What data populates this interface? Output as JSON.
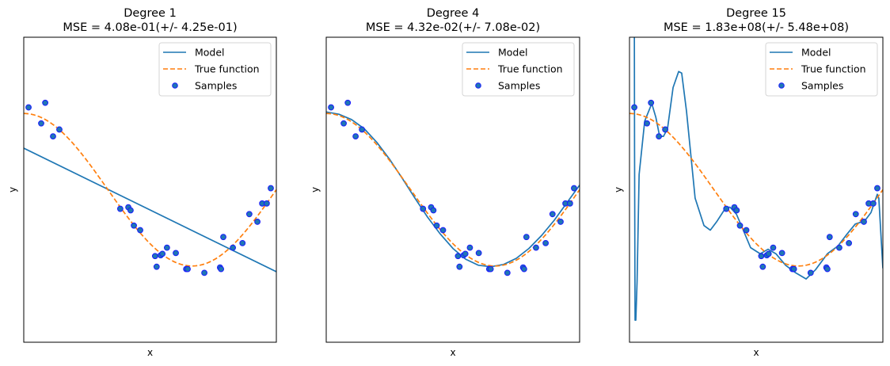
{
  "chart_data": [
    {
      "type": "line",
      "title_line1": "Degree 1",
      "title_line2": "MSE = 4.08e-01(+/- 4.25e-01)",
      "xlabel": "x",
      "ylabel": "y",
      "xlim": [
        0,
        1
      ],
      "ylim": [
        -2,
        2
      ],
      "xticks": [],
      "yticks": [],
      "grid": false,
      "legend_placement": "top-right",
      "legend": [
        "Model",
        "True function",
        "Samples"
      ],
      "series": [
        {
          "name": "Model",
          "kind": "line",
          "color": "#1f77b4",
          "x": [
            0,
            1
          ],
          "y": [
            0.545,
            -1.075
          ]
        },
        {
          "name": "True function",
          "kind": "dashed",
          "color": "#ff7f0e",
          "function": "cos(1.5*pi*x)"
        }
      ]
    },
    {
      "type": "line",
      "title_line1": "Degree 4",
      "title_line2": "MSE = 4.32e-02(+/- 7.08e-02)",
      "xlabel": "x",
      "ylabel": "y",
      "xlim": [
        0,
        1
      ],
      "ylim": [
        -2,
        2
      ],
      "xticks": [],
      "yticks": [],
      "grid": false,
      "legend_placement": "top-right",
      "legend": [
        "Model",
        "True function",
        "Samples"
      ],
      "series": [
        {
          "name": "Model",
          "kind": "line",
          "color": "#1f77b4",
          "x": [
            0,
            0.05,
            0.1,
            0.15,
            0.2,
            0.25,
            0.3,
            0.35,
            0.4,
            0.45,
            0.5,
            0.55,
            0.6,
            0.65,
            0.7,
            0.75,
            0.8,
            0.85,
            0.9,
            0.95,
            1.0
          ],
          "y": [
            1.02,
            0.99,
            0.92,
            0.8,
            0.62,
            0.4,
            0.15,
            -0.11,
            -0.36,
            -0.58,
            -0.77,
            -0.91,
            -0.99,
            -1.01,
            -0.98,
            -0.9,
            -0.77,
            -0.6,
            -0.4,
            -0.17,
            0.06
          ]
        },
        {
          "name": "True function",
          "kind": "dashed",
          "color": "#ff7f0e",
          "function": "cos(1.5*pi*x)"
        }
      ]
    },
    {
      "type": "line",
      "title_line1": "Degree 15",
      "title_line2": "MSE = 1.83e+08(+/- 5.48e+08)",
      "xlabel": "x",
      "ylabel": "y",
      "xlim": [
        0,
        1
      ],
      "ylim": [
        -2,
        2
      ],
      "xticks": [],
      "yticks": [],
      "grid": false,
      "legend_placement": "top-right",
      "legend": [
        "Model",
        "True function",
        "Samples"
      ],
      "series": [
        {
          "name": "Model",
          "kind": "line",
          "color": "#1f77b4",
          "x": [
            0.019,
            0.02,
            0.022,
            0.025,
            0.03,
            0.038,
            0.06,
            0.088,
            0.104,
            0.119,
            0.134,
            0.15,
            0.172,
            0.194,
            0.206,
            0.225,
            0.259,
            0.294,
            0.319,
            0.344,
            0.381,
            0.397,
            0.422,
            0.444,
            0.478,
            0.516,
            0.547,
            0.578,
            0.616,
            0.656,
            0.697,
            0.734,
            0.781,
            0.822,
            0.859,
            0.891,
            0.928,
            0.953,
            0.978,
            0.984,
            1.0
          ],
          "y": [
            2.5,
            0.5,
            -1.71,
            -1.71,
            -1.2,
            0.2,
            0.9,
            1.13,
            0.95,
            0.7,
            0.7,
            0.8,
            1.34,
            1.55,
            1.53,
            1.03,
            -0.11,
            -0.47,
            -0.53,
            -0.42,
            -0.23,
            -0.23,
            -0.32,
            -0.49,
            -0.76,
            -0.84,
            -0.78,
            -0.84,
            -0.99,
            -1.09,
            -1.17,
            -1.05,
            -0.84,
            -0.74,
            -0.58,
            -0.45,
            -0.41,
            -0.3,
            -0.06,
            -0.11,
            -1.03
          ]
        },
        {
          "name": "True function",
          "kind": "dashed",
          "color": "#ff7f0e",
          "function": "cos(1.5*pi*x)"
        }
      ]
    }
  ],
  "samples": {
    "name": "Samples",
    "color": "#1f4fe0",
    "x": [
      0.019,
      0.085,
      0.069,
      0.116,
      0.141,
      0.382,
      0.414,
      0.423,
      0.436,
      0.461,
      0.52,
      0.526,
      0.542,
      0.549,
      0.567,
      0.602,
      0.643,
      0.649,
      0.715,
      0.777,
      0.781,
      0.79,
      0.828,
      0.866,
      0.893,
      0.925,
      0.944,
      0.962,
      0.978
    ],
    "y": [
      1.08,
      1.14,
      0.87,
      0.7,
      0.79,
      -0.25,
      -0.23,
      -0.27,
      -0.47,
      -0.53,
      -0.87,
      -1.01,
      -0.86,
      -0.84,
      -0.76,
      -0.83,
      -1.04,
      -1.04,
      -1.09,
      -1.02,
      -1.04,
      -0.62,
      -0.76,
      -0.7,
      -0.32,
      -0.42,
      -0.18,
      -0.18,
      0.02
    ]
  }
}
